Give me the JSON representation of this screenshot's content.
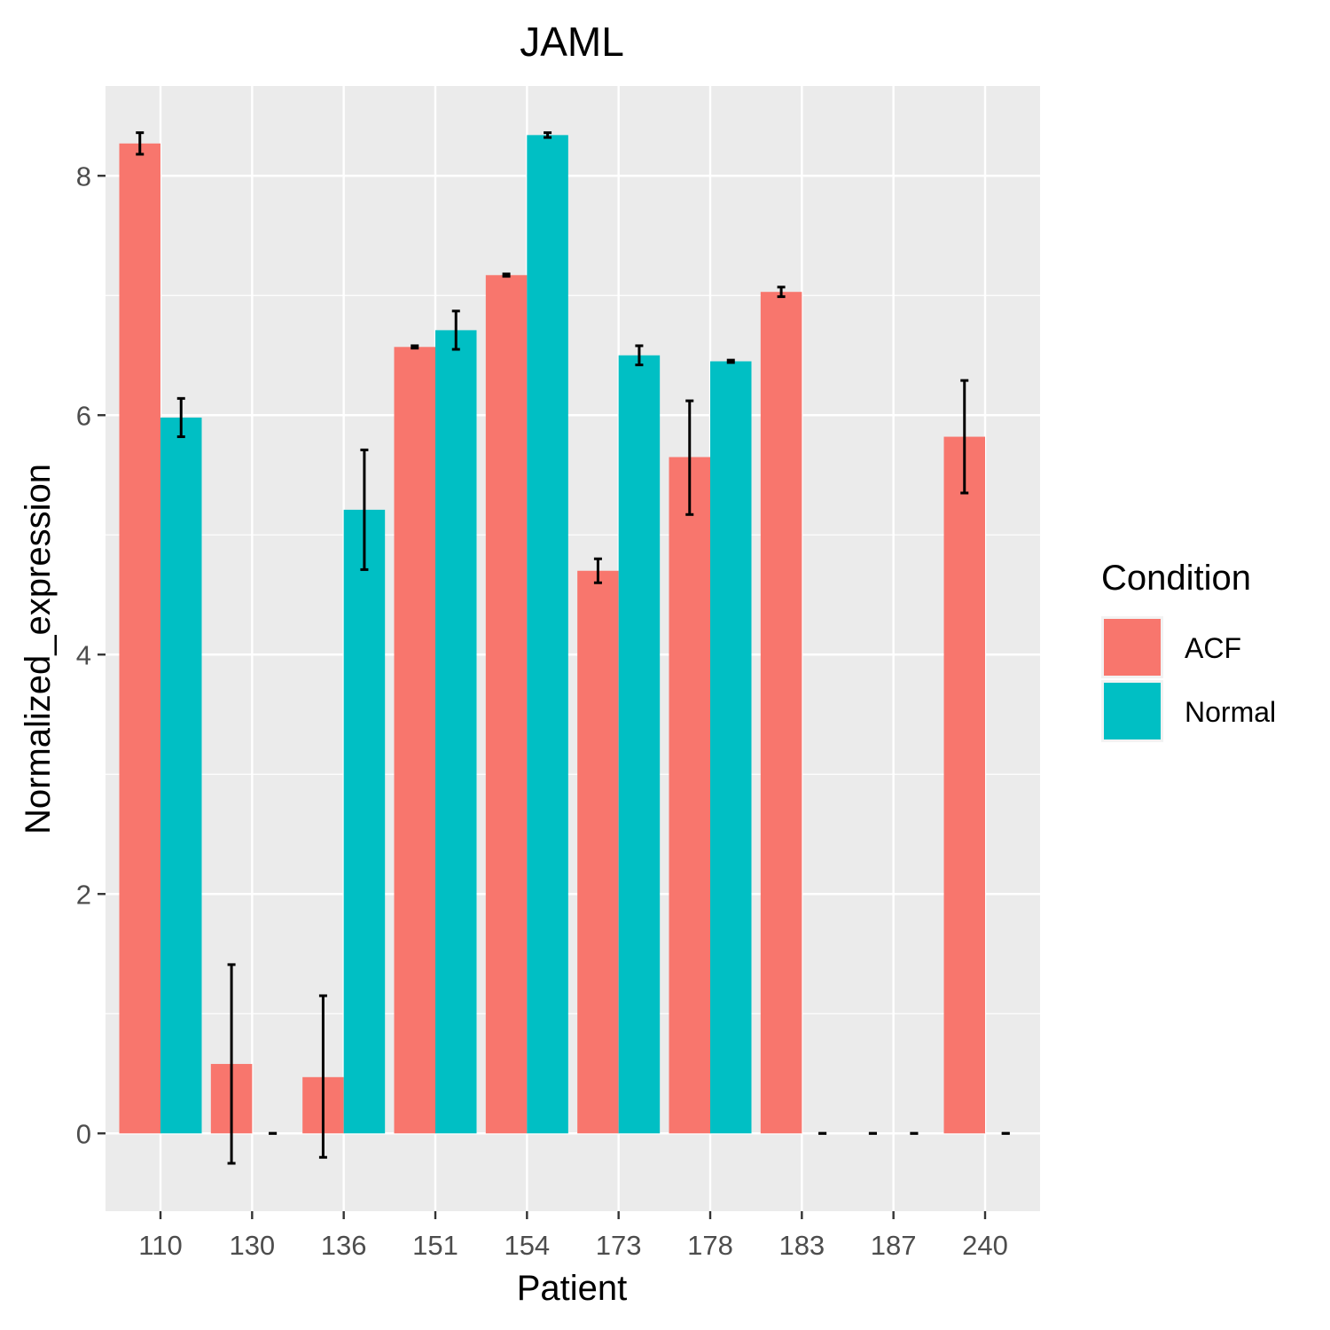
{
  "chart_data": {
    "type": "bar",
    "title": "JAML",
    "xlabel": "Patient",
    "ylabel": "Normalized_expression",
    "categories": [
      "110",
      "130",
      "136",
      "151",
      "154",
      "173",
      "178",
      "183",
      "187",
      "240"
    ],
    "series": [
      {
        "name": "ACF",
        "color": "#F8766D",
        "values": [
          8.27,
          0.58,
          0.47,
          6.57,
          7.17,
          4.7,
          5.65,
          7.03,
          0,
          5.82
        ],
        "error_low": [
          8.18,
          -0.25,
          -0.2,
          6.56,
          7.16,
          4.6,
          5.17,
          6.99,
          0,
          5.35
        ],
        "error_high": [
          8.36,
          1.41,
          1.15,
          6.58,
          7.18,
          4.8,
          6.12,
          7.07,
          0,
          6.29
        ]
      },
      {
        "name": "Normal",
        "color": "#00BFC4",
        "values": [
          5.98,
          0,
          5.21,
          6.71,
          8.34,
          6.5,
          6.45,
          0,
          0,
          0
        ],
        "error_low": [
          5.82,
          0,
          4.71,
          6.55,
          8.32,
          6.42,
          6.44,
          0,
          0,
          0
        ],
        "error_high": [
          6.14,
          0,
          5.71,
          6.87,
          8.36,
          6.58,
          6.46,
          0,
          0,
          0
        ]
      }
    ],
    "ylim": [
      -0.65,
      8.75
    ],
    "yticks": [
      0,
      2,
      4,
      6,
      8
    ],
    "grid": true,
    "legend": {
      "title": "Condition",
      "position": "right",
      "entries": [
        "ACF",
        "Normal"
      ]
    }
  }
}
